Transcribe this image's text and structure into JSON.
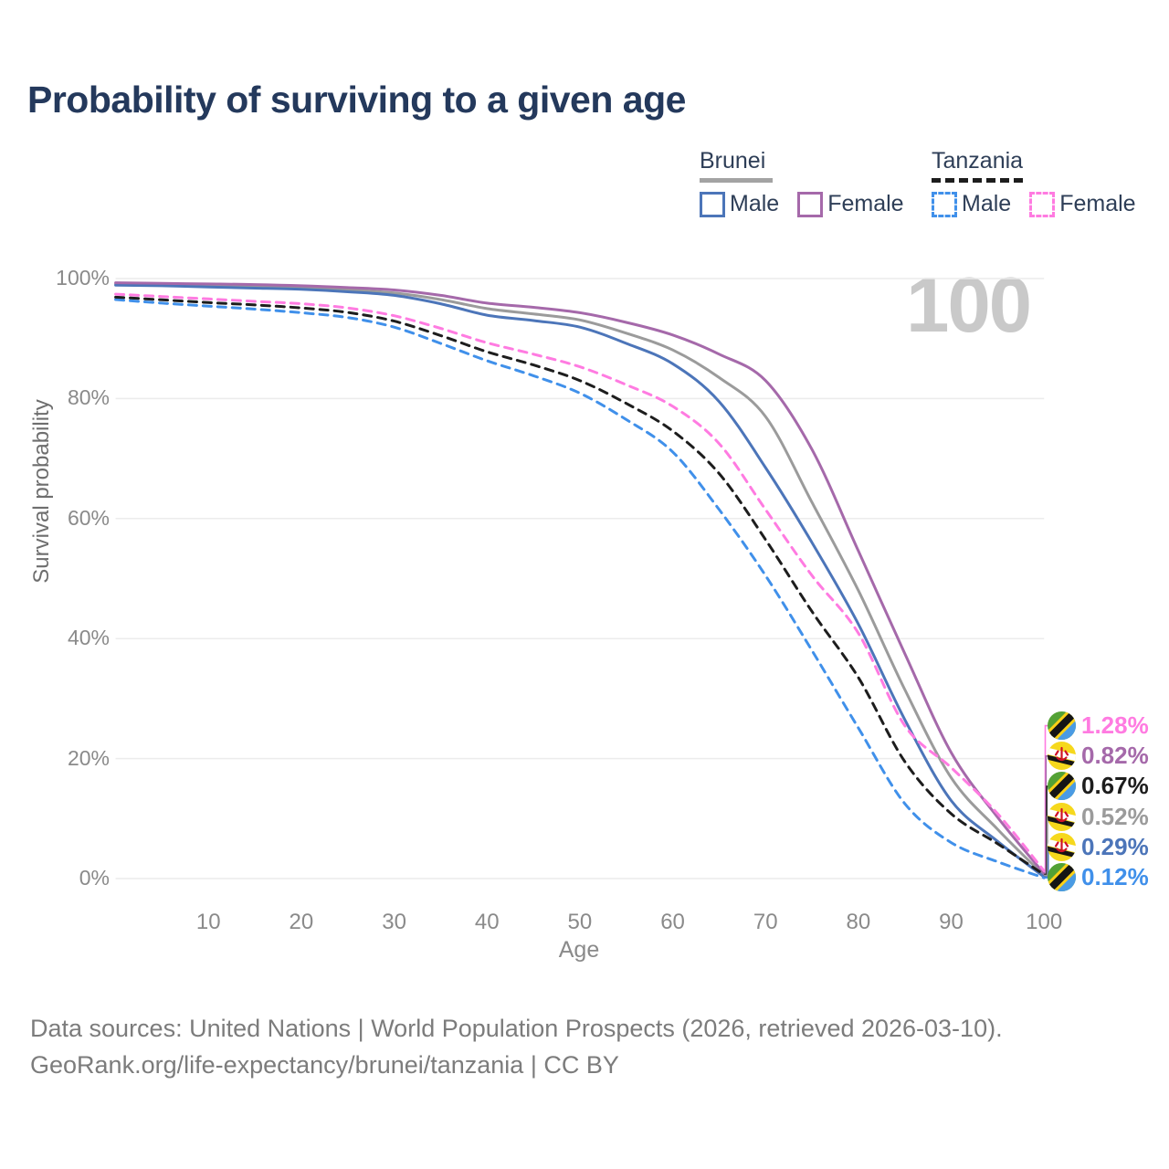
{
  "title": "Probability of surviving to a given age",
  "watermark": "100",
  "legend": {
    "groups": [
      {
        "name": "Brunei",
        "line_style": "solid",
        "underline_color": "#a3a3a3",
        "items": [
          {
            "label": "Male",
            "color": "#4c75b9",
            "dashed": false
          },
          {
            "label": "Female",
            "color": "#a569aa",
            "dashed": false
          }
        ]
      },
      {
        "name": "Tanzania",
        "line_style": "dashed",
        "underline_color": "#1d1d1d",
        "items": [
          {
            "label": "Male",
            "color": "#4090ea",
            "dashed": true
          },
          {
            "label": "Female",
            "color": "#ff7be1",
            "dashed": true
          }
        ]
      }
    ]
  },
  "axes": {
    "ylabel": "Survival probability",
    "xlabel": "Age",
    "yticks": [
      0,
      20,
      40,
      60,
      80,
      100
    ],
    "ytick_labels": [
      "0%",
      "20%",
      "40%",
      "60%",
      "80%",
      "100%"
    ],
    "xticks": [
      10,
      20,
      30,
      40,
      50,
      60,
      70,
      80,
      90,
      100
    ]
  },
  "chart_data": {
    "type": "line",
    "title": "Probability of surviving to a given age",
    "xlabel": "Age",
    "ylabel": "Survival probability",
    "xlim": [
      0,
      100
    ],
    "ylim": [
      0,
      100
    ],
    "grid": "horizontal",
    "legend_position": "top-right",
    "x": [
      0,
      5,
      10,
      15,
      20,
      25,
      30,
      35,
      40,
      45,
      50,
      55,
      60,
      65,
      70,
      75,
      80,
      85,
      90,
      95,
      100
    ],
    "series": [
      {
        "name": "Brunei",
        "country": "Brunei",
        "sex": "all",
        "color": "#9b9b9b",
        "dashed": false,
        "values": [
          99.1,
          99.0,
          98.85,
          98.7,
          98.5,
          98.15,
          97.6,
          96.5,
          95.0,
          94.1,
          93.1,
          90.9,
          88.1,
          83.5,
          77.0,
          62.7,
          48.0,
          31.5,
          16.8,
          8.2,
          0.52
        ],
        "end_label": "0.52%"
      },
      {
        "name": "Brunei Male",
        "country": "Brunei",
        "sex": "male",
        "color": "#4c75b9",
        "dashed": false,
        "values": [
          98.9,
          98.8,
          98.6,
          98.4,
          98.2,
          97.8,
          97.2,
          95.8,
          93.9,
          93.0,
          91.9,
          89.2,
          85.8,
          79.5,
          68.5,
          56.0,
          42.4,
          26.5,
          13.0,
          6.2,
          0.29
        ],
        "end_label": "0.29%"
      },
      {
        "name": "Brunei Female",
        "country": "Brunei",
        "sex": "female",
        "color": "#a569aa",
        "dashed": false,
        "values": [
          99.3,
          99.2,
          99.1,
          99.0,
          98.8,
          98.5,
          98.1,
          97.2,
          95.9,
          95.2,
          94.3,
          92.7,
          90.6,
          87.4,
          83.0,
          71.5,
          54.6,
          37.5,
          21.0,
          10.2,
          0.82
        ],
        "end_label": "0.82%"
      },
      {
        "name": "Tanzania Male",
        "country": "Tanzania",
        "sex": "male",
        "color": "#4090ea",
        "dashed": true,
        "values": [
          96.5,
          95.9,
          95.4,
          94.9,
          94.3,
          93.5,
          91.9,
          89.2,
          86.3,
          83.8,
          80.9,
          76.5,
          71.1,
          61.5,
          50.5,
          38.0,
          25.1,
          12.5,
          6.0,
          2.8,
          0.12
        ],
        "end_label": "0.12%"
      },
      {
        "name": "Tanzania",
        "country": "Tanzania",
        "sex": "all",
        "color": "#1d1d1d",
        "dashed": true,
        "values": [
          96.9,
          96.45,
          96.0,
          95.6,
          95.1,
          94.35,
          92.9,
          90.5,
          87.8,
          85.6,
          83.0,
          79.2,
          74.6,
          67.5,
          56.5,
          44.5,
          33.5,
          19.5,
          10.8,
          5.8,
          0.67
        ],
        "end_label": "0.67%"
      },
      {
        "name": "Tanzania Female",
        "country": "Tanzania",
        "sex": "female",
        "color": "#ff7be1",
        "dashed": true,
        "values": [
          97.4,
          97.0,
          96.6,
          96.2,
          95.8,
          95.1,
          93.8,
          91.7,
          89.3,
          87.4,
          85.3,
          82.3,
          78.7,
          72.5,
          61.5,
          50.5,
          40.9,
          25.5,
          18.5,
          10.8,
          1.28
        ],
        "end_label": "1.28%"
      }
    ],
    "end_labels": [
      {
        "value": "1.28%",
        "series": "Tanzania Female",
        "flag": "tanzania",
        "color": "#ff7be1",
        "final_pct": 1.28
      },
      {
        "value": "0.82%",
        "series": "Brunei Female",
        "flag": "brunei",
        "color": "#a569aa",
        "final_pct": 0.82
      },
      {
        "value": "0.67%",
        "series": "Tanzania",
        "flag": "tanzania",
        "color": "#1d1d1d",
        "final_pct": 0.67
      },
      {
        "value": "0.52%",
        "series": "Brunei",
        "flag": "brunei",
        "color": "#9b9b9b",
        "final_pct": 0.52
      },
      {
        "value": "0.29%",
        "series": "Brunei Male",
        "flag": "brunei",
        "color": "#4c75b9",
        "final_pct": 0.29
      },
      {
        "value": "0.12%",
        "series": "Tanzania Male",
        "flag": "tanzania",
        "color": "#4090ea",
        "final_pct": 0.12
      }
    ]
  },
  "footer": {
    "line1": "Data sources: United Nations | World Population Prospects (2026, retrieved 2026-03-10).",
    "line2": "GeoRank.org/life-expectancy/brunei/tanzania | CC BY"
  }
}
